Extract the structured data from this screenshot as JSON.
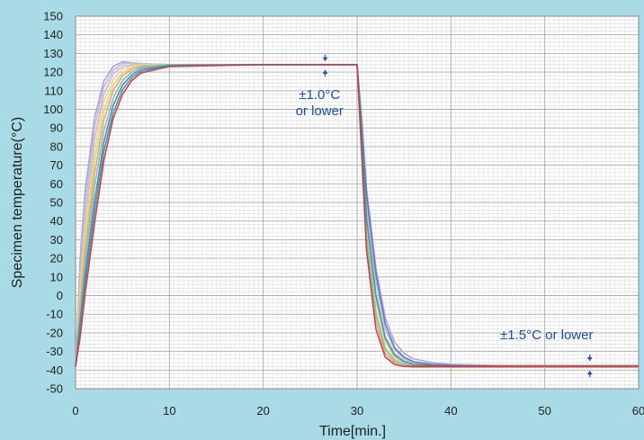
{
  "chart_data": {
    "type": "line",
    "title": "",
    "xlabel": "Time[min.]",
    "ylabel": "Specimen temperature(°C)",
    "xlim": [
      0,
      60
    ],
    "ylim": [
      -50,
      150
    ],
    "xticks": [
      "0",
      "10",
      "20",
      "30",
      "40",
      "50",
      "60"
    ],
    "yticks": [
      "150",
      "140",
      "130",
      "120",
      "110",
      "100",
      "90",
      "80",
      "70",
      "60",
      "50",
      "40",
      "30",
      "20",
      "10",
      "0",
      "-10",
      "-20",
      "-30",
      "-40",
      "-50"
    ],
    "grid": true,
    "annotations": [
      {
        "lines": [
          "±1.0°C",
          "or lower"
        ],
        "x": 29,
        "y": 123.5,
        "band": [
          122.5,
          124.5
        ]
      },
      {
        "lines": [
          "±1.5°C or lower"
        ],
        "x": 54.8,
        "y": -37.5,
        "band": [
          -36.0,
          -39.0
        ]
      }
    ],
    "series": [
      {
        "color": "#b49ad6",
        "x": [
          0,
          0.5,
          1,
          2,
          3,
          4,
          5,
          6,
          7,
          10,
          20,
          30,
          30.5,
          31,
          32,
          33,
          34,
          35,
          36,
          38,
          40,
          45,
          50,
          55,
          60
        ],
        "y": [
          -38,
          20,
          55,
          95,
          115,
          123,
          125.5,
          125,
          124.5,
          124,
          124,
          124,
          95,
          58,
          15,
          -12,
          -25,
          -31,
          -34,
          -36,
          -37,
          -37.5,
          -37.5,
          -37.5,
          -37.5
        ]
      },
      {
        "color": "#9ec4e6",
        "x": [
          0,
          0.5,
          1,
          2,
          3,
          4,
          5,
          6,
          7,
          10,
          20,
          30,
          30.5,
          31,
          32,
          33,
          34,
          35,
          36,
          38,
          40,
          45,
          50,
          55,
          60
        ],
        "y": [
          -38,
          15,
          48,
          90,
          112,
          121,
          124.5,
          125,
          124.5,
          124,
          124,
          124,
          90,
          50,
          8,
          -18,
          -29,
          -34,
          -36,
          -37,
          -37.5,
          -38,
          -38,
          -38,
          -38
        ]
      },
      {
        "color": "#e6a8c8",
        "x": [
          0,
          0.5,
          1,
          2,
          3,
          4,
          5,
          6,
          7,
          10,
          20,
          30,
          30.5,
          31,
          32,
          33,
          34,
          35,
          36,
          38,
          40,
          45,
          50,
          55,
          60
        ],
        "y": [
          -38,
          10,
          40,
          84,
          108,
          119,
          123,
          124,
          124,
          124,
          124,
          124,
          88,
          45,
          2,
          -22,
          -31,
          -35,
          -36.5,
          -37.5,
          -38,
          -38,
          -38,
          -38,
          -38
        ]
      },
      {
        "color": "#e8d488",
        "x": [
          0,
          0.5,
          1,
          2,
          3,
          4,
          5,
          6,
          7,
          10,
          20,
          30,
          30.5,
          31,
          32,
          33,
          34,
          35,
          36,
          38,
          40,
          45,
          50,
          55,
          60
        ],
        "y": [
          -38,
          5,
          35,
          78,
          104,
          116,
          121.5,
          123.5,
          124,
          124,
          124,
          124,
          85,
          40,
          -3,
          -25,
          -33,
          -36,
          -37,
          -37.5,
          -38,
          -38,
          -38,
          -38,
          -38
        ]
      },
      {
        "color": "#c5d88a",
        "x": [
          0,
          0.5,
          1,
          2,
          3,
          4,
          5,
          6,
          7,
          10,
          20,
          30,
          30.5,
          31,
          32,
          33,
          34,
          35,
          36,
          38,
          40,
          45,
          50,
          55,
          60
        ],
        "y": [
          -38,
          0,
          28,
          72,
          99,
          113,
          119.5,
          122.5,
          123.5,
          124,
          124,
          124,
          82,
          35,
          -8,
          -28,
          -34,
          -36.5,
          -37.5,
          -38,
          -38,
          -38,
          -38,
          -38,
          -38
        ]
      },
      {
        "color": "#e8a070",
        "x": [
          0,
          0.5,
          1,
          2,
          3,
          4,
          5,
          6,
          7,
          10,
          20,
          30,
          30.5,
          31,
          32,
          33,
          34,
          35,
          36,
          38,
          40,
          45,
          50,
          55,
          60
        ],
        "y": [
          -38,
          -5,
          22,
          65,
          94,
          110,
          118,
          121.5,
          123,
          124,
          124,
          124,
          78,
          28,
          -14,
          -31,
          -36,
          -38,
          -38.5,
          -38.5,
          -38.5,
          -38.5,
          -38.5,
          -38.5,
          -38.5
        ]
      },
      {
        "color": "#7cc0a8",
        "x": [
          0,
          0.5,
          1,
          2,
          3,
          4,
          5,
          6,
          7,
          10,
          20,
          30,
          30.5,
          31,
          32,
          33,
          34,
          35,
          36,
          38,
          40,
          45,
          50,
          55,
          60
        ],
        "y": [
          -38,
          -10,
          16,
          58,
          88,
          106,
          115.5,
          120,
          122.5,
          124,
          124,
          124,
          80,
          32,
          -10,
          -29,
          -35,
          -37,
          -38,
          -38,
          -38,
          -38,
          -38,
          -38,
          -38
        ]
      },
      {
        "color": "#5878b8",
        "x": [
          0,
          0.5,
          1,
          2,
          3,
          4,
          5,
          6,
          7,
          10,
          20,
          30,
          30.5,
          31,
          32,
          33,
          34,
          35,
          36,
          38,
          40,
          45,
          50,
          55,
          60
        ],
        "y": [
          -38,
          -14,
          10,
          50,
          82,
          102,
          113,
          118.5,
          121.5,
          123.5,
          124,
          124,
          92,
          55,
          12,
          -15,
          -28,
          -33,
          -35.5,
          -37,
          -37.5,
          -38,
          -38,
          -38,
          -38
        ]
      },
      {
        "color": "#3a9a98",
        "x": [
          0,
          0.5,
          1,
          2,
          3,
          4,
          5,
          6,
          7,
          10,
          20,
          30,
          30.5,
          31,
          32,
          33,
          34,
          35,
          36,
          38,
          40,
          45,
          50,
          55,
          60
        ],
        "y": [
          -38,
          -18,
          5,
          44,
          77,
          98,
          110.5,
          117,
          120.5,
          123.5,
          124,
          124,
          86,
          42,
          0,
          -23,
          -32,
          -35.5,
          -37,
          -37.5,
          -38,
          -38,
          -38,
          -38,
          -38
        ]
      },
      {
        "color": "#c83a4a",
        "x": [
          0,
          0.5,
          1,
          2,
          3,
          4,
          5,
          6,
          7,
          10,
          20,
          30,
          30.5,
          31,
          32,
          33,
          34,
          35,
          36,
          38,
          40,
          45,
          50,
          55,
          60
        ],
        "y": [
          -38,
          -22,
          0,
          38,
          72,
          95,
          108,
          115.5,
          119.5,
          123,
          124,
          124,
          75,
          25,
          -18,
          -33,
          -37,
          -38,
          -38,
          -38,
          -38,
          -38,
          -38,
          -38,
          -38
        ]
      }
    ]
  }
}
